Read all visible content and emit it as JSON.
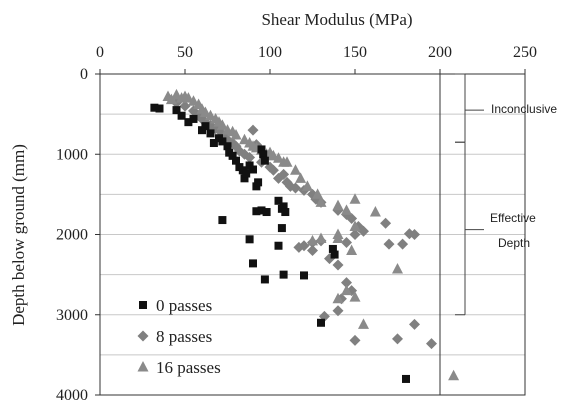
{
  "chart_data": {
    "type": "scatter",
    "xlabel": "Shear Modulus (MPa)",
    "ylabel": "Depth below ground (mm)",
    "xlim": [
      0,
      250
    ],
    "ylim": [
      0,
      4000
    ],
    "y_inverted": true,
    "x_axis_position": "top",
    "x_ticks": [
      0,
      50,
      100,
      150,
      200,
      250
    ],
    "y_ticks": [
      0,
      1000,
      2000,
      3000,
      4000
    ],
    "grid": "horizontal-minor",
    "legend_position": "bottom-left",
    "colors": {
      "0 passes": "#111111",
      "8 passes": "#808080",
      "16 passes": "#8a8a8a"
    },
    "series": [
      {
        "name": "0 passes",
        "marker": "square",
        "points": [
          [
            32,
            420
          ],
          [
            35,
            430
          ],
          [
            45,
            450
          ],
          [
            48,
            520
          ],
          [
            52,
            600
          ],
          [
            55,
            560
          ],
          [
            60,
            700
          ],
          [
            62,
            650
          ],
          [
            65,
            740
          ],
          [
            67,
            860
          ],
          [
            70,
            800
          ],
          [
            72,
            840
          ],
          [
            75,
            900
          ],
          [
            76,
            980
          ],
          [
            78,
            1020
          ],
          [
            80,
            1080
          ],
          [
            82,
            1160
          ],
          [
            84,
            1200
          ],
          [
            85,
            1300
          ],
          [
            86,
            1240
          ],
          [
            88,
            1140
          ],
          [
            90,
            1190
          ],
          [
            92,
            1400
          ],
          [
            93,
            1350
          ],
          [
            95,
            940
          ],
          [
            96,
            1000
          ],
          [
            97,
            1080
          ],
          [
            92,
            1710
          ],
          [
            95,
            1700
          ],
          [
            98,
            1720
          ],
          [
            105,
            1580
          ],
          [
            107,
            1680
          ],
          [
            108,
            1650
          ],
          [
            109,
            1720
          ],
          [
            107,
            1920
          ],
          [
            105,
            2140
          ],
          [
            88,
            2060
          ],
          [
            72,
            1820
          ],
          [
            90,
            2360
          ],
          [
            97,
            2560
          ],
          [
            108,
            2500
          ],
          [
            120,
            2510
          ],
          [
            137,
            2180
          ],
          [
            138,
            2250
          ],
          [
            130,
            3100
          ],
          [
            180,
            3800
          ]
        ]
      },
      {
        "name": "8 passes",
        "marker": "diamond",
        "points": [
          [
            45,
            360
          ],
          [
            50,
            400
          ],
          [
            55,
            460
          ],
          [
            58,
            520
          ],
          [
            60,
            560
          ],
          [
            62,
            600
          ],
          [
            65,
            640
          ],
          [
            68,
            680
          ],
          [
            70,
            700
          ],
          [
            72,
            760
          ],
          [
            75,
            820
          ],
          [
            78,
            860
          ],
          [
            80,
            900
          ],
          [
            82,
            960
          ],
          [
            85,
            1000
          ],
          [
            88,
            1040
          ],
          [
            90,
            700
          ],
          [
            92,
            880
          ],
          [
            95,
            1100
          ],
          [
            100,
            1160
          ],
          [
            102,
            1200
          ],
          [
            105,
            1300
          ],
          [
            108,
            1250
          ],
          [
            110,
            1350
          ],
          [
            112,
            1400
          ],
          [
            115,
            1420
          ],
          [
            120,
            1450
          ],
          [
            125,
            1500
          ],
          [
            127,
            1560
          ],
          [
            130,
            1600
          ],
          [
            140,
            1700
          ],
          [
            145,
            1750
          ],
          [
            148,
            1800
          ],
          [
            152,
            1900
          ],
          [
            155,
            1960
          ],
          [
            150,
            2000
          ],
          [
            145,
            2100
          ],
          [
            130,
            2080
          ],
          [
            125,
            2100
          ],
          [
            117,
            2160
          ],
          [
            120,
            2140
          ],
          [
            125,
            2200
          ],
          [
            135,
            2300
          ],
          [
            140,
            2380
          ],
          [
            168,
            1860
          ],
          [
            178,
            2120
          ],
          [
            182,
            1990
          ],
          [
            185,
            2000
          ],
          [
            170,
            2120
          ],
          [
            145,
            2600
          ],
          [
            148,
            2700
          ],
          [
            142,
            2800
          ],
          [
            140,
            2950
          ],
          [
            132,
            3020
          ],
          [
            150,
            3320
          ],
          [
            175,
            3300
          ],
          [
            185,
            3120
          ],
          [
            195,
            3360
          ]
        ]
      },
      {
        "name": "16 passes",
        "marker": "triangle",
        "points": [
          [
            40,
            280
          ],
          [
            42,
            320
          ],
          [
            45,
            260
          ],
          [
            48,
            300
          ],
          [
            50,
            280
          ],
          [
            52,
            300
          ],
          [
            55,
            340
          ],
          [
            58,
            380
          ],
          [
            60,
            440
          ],
          [
            62,
            480
          ],
          [
            65,
            520
          ],
          [
            68,
            560
          ],
          [
            70,
            600
          ],
          [
            72,
            640
          ],
          [
            75,
            700
          ],
          [
            78,
            720
          ],
          [
            80,
            760
          ],
          [
            85,
            820
          ],
          [
            88,
            860
          ],
          [
            90,
            900
          ],
          [
            92,
            920
          ],
          [
            95,
            950
          ],
          [
            98,
            1000
          ],
          [
            100,
            980
          ],
          [
            102,
            1020
          ],
          [
            105,
            1050
          ],
          [
            108,
            1100
          ],
          [
            110,
            1100
          ],
          [
            115,
            1200
          ],
          [
            118,
            1300
          ],
          [
            122,
            1400
          ],
          [
            128,
            1500
          ],
          [
            130,
            1600
          ],
          [
            140,
            1640
          ],
          [
            145,
            1700
          ],
          [
            150,
            1560
          ],
          [
            162,
            1720
          ],
          [
            150,
            1900
          ],
          [
            140,
            2000
          ],
          [
            130,
            2050
          ],
          [
            125,
            2080
          ],
          [
            140,
            2050
          ],
          [
            148,
            2200
          ],
          [
            175,
            2430
          ],
          [
            140,
            2800
          ],
          [
            145,
            2700
          ],
          [
            150,
            2780
          ],
          [
            155,
            3120
          ],
          [
            208,
            3760
          ]
        ]
      }
    ],
    "annotations": [
      "Inconclusive",
      "Effective Depth"
    ]
  }
}
